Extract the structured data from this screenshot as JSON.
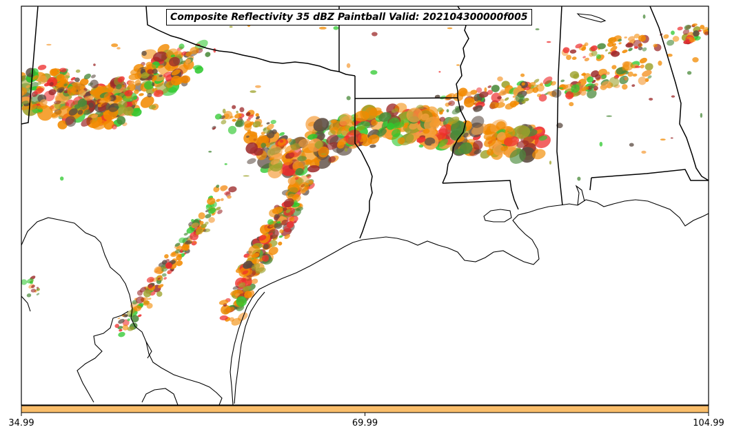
{
  "map": {
    "title": "Composite Reflectivity 35 dBZ Paintball Valid: 202104300000f005",
    "colorbar": {
      "tick_labels": [
        "34.99",
        "69.99",
        "104.99"
      ],
      "fill_color": "#f9bd6a"
    },
    "paintball_colors": {
      "green": "#2ec82e",
      "dark_green": "#4a8a3a",
      "olive": "#9ca12a",
      "orange": "#f28a00",
      "light_orange": "#f5a040",
      "red": "#ee2d2d",
      "dark_red": "#9c2a2a",
      "brown_gray": "#5a4a40"
    }
  }
}
